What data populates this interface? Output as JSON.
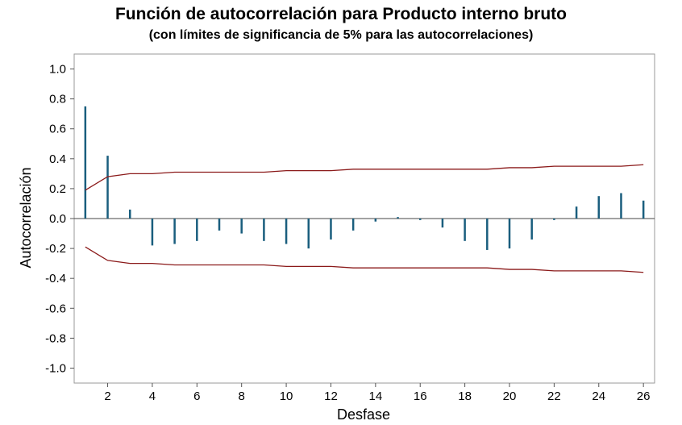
{
  "chart_data": {
    "type": "bar",
    "title": "Función de autocorrelación para Producto interno bruto",
    "subtitle": "(con límites de significancia de 5% para las autocorrelaciones)",
    "xlabel": "Desfase",
    "ylabel": "Autocorrelación",
    "xlim": [
      0.5,
      26.5
    ],
    "ylim": [
      -1.1,
      1.1
    ],
    "x_ticks": [
      2,
      4,
      6,
      8,
      10,
      12,
      14,
      16,
      18,
      20,
      22,
      24,
      26
    ],
    "y_ticks": [
      1.0,
      0.8,
      0.6,
      0.4,
      0.2,
      0.0,
      -0.2,
      -0.4,
      -0.6,
      -0.8,
      -1.0
    ],
    "y_tick_labels": [
      "1.0",
      "0.8",
      "0.6",
      "0.4",
      "0.2",
      "0.0",
      "-0.2",
      "-0.4",
      "-0.6",
      "-0.8",
      "-1.0"
    ],
    "grid": false,
    "bar_color": "#1a5e7e",
    "limit_color": "#8b1a1a",
    "lags": [
      1,
      2,
      3,
      4,
      5,
      6,
      7,
      8,
      9,
      10,
      11,
      12,
      13,
      14,
      15,
      16,
      17,
      18,
      19,
      20,
      21,
      22,
      23,
      24,
      25,
      26
    ],
    "acf": [
      0.75,
      0.42,
      0.06,
      -0.18,
      -0.17,
      -0.15,
      -0.08,
      -0.1,
      -0.15,
      -0.17,
      -0.2,
      -0.14,
      -0.08,
      -0.02,
      0.01,
      -0.01,
      -0.06,
      -0.15,
      -0.21,
      -0.2,
      -0.14,
      -0.01,
      0.08,
      0.15,
      0.17,
      0.12
    ],
    "upper_limit": [
      0.19,
      0.28,
      0.3,
      0.3,
      0.31,
      0.31,
      0.31,
      0.31,
      0.31,
      0.32,
      0.32,
      0.32,
      0.33,
      0.33,
      0.33,
      0.33,
      0.33,
      0.33,
      0.33,
      0.34,
      0.34,
      0.35,
      0.35,
      0.35,
      0.35,
      0.36
    ],
    "lower_limit": [
      -0.19,
      -0.28,
      -0.3,
      -0.3,
      -0.31,
      -0.31,
      -0.31,
      -0.31,
      -0.31,
      -0.32,
      -0.32,
      -0.32,
      -0.33,
      -0.33,
      -0.33,
      -0.33,
      -0.33,
      -0.33,
      -0.33,
      -0.34,
      -0.34,
      -0.35,
      -0.35,
      -0.35,
      -0.35,
      -0.36
    ]
  }
}
